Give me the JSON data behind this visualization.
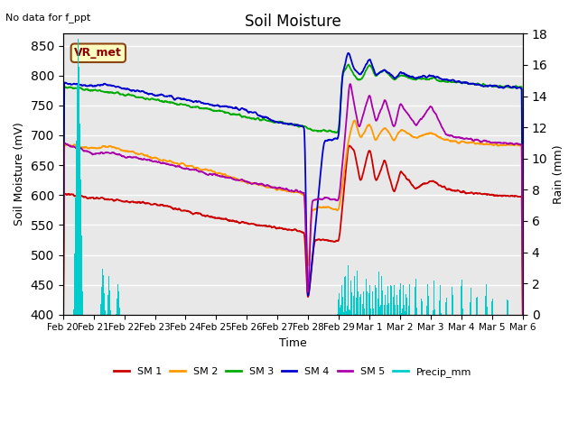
{
  "title": "Soil Moisture",
  "xlabel": "Time",
  "ylabel_left": "Soil Moisture (mV)",
  "ylabel_right": "Rain (mm)",
  "top_left_text": "No data for f_ppt",
  "annotation_box": "VR_met",
  "ylim_left": [
    400,
    870
  ],
  "ylim_right": [
    0,
    18
  ],
  "yticks_left": [
    400,
    450,
    500,
    550,
    600,
    650,
    700,
    750,
    800,
    850
  ],
  "yticks_right": [
    0,
    2,
    4,
    6,
    8,
    10,
    12,
    14,
    16,
    18
  ],
  "background_color": "#ffffff",
  "plot_bg_color": "#e8e8e8",
  "grid_color": "#ffffff",
  "colors": {
    "SM1": "#cc0000",
    "SM2": "#ff9900",
    "SM3": "#00aa00",
    "SM4": "#0000cc",
    "SM5": "#aa00aa",
    "Precip": "#00cccc"
  },
  "legend_labels": [
    "SM 1",
    "SM 2",
    "SM 3",
    "SM 4",
    "SM 5",
    "Precip_mm"
  ],
  "n_points": 2000
}
